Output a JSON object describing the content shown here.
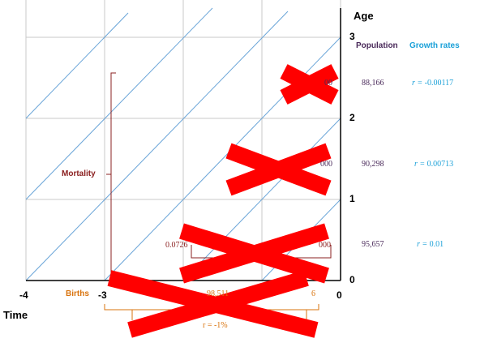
{
  "axes": {
    "y_title": "Age",
    "x_title": "Time",
    "x_ticks": [
      "-4",
      "-3",
      "0"
    ],
    "y_ticks": [
      "3",
      "2",
      "1",
      "0"
    ]
  },
  "table": {
    "population_header": "Population",
    "growth_header": "Growth rates",
    "rows": [
      {
        "population": "88,166",
        "rate_prefix": "r =",
        "rate_value": "-0.00117"
      },
      {
        "population": "90,298",
        "rate_prefix": "r =",
        "rate_value": "0.00713"
      },
      {
        "population": "95,657",
        "rate_prefix": "r =",
        "rate_value": "0.01"
      }
    ]
  },
  "labels": {
    "mortality": "Mortality",
    "births": "Births",
    "births_rate": "r = -1%",
    "births_value_partial": "98,511",
    "mortality_rate_partial": "0.0726",
    "partial_text_row1": "00",
    "partial_text_row2": "000",
    "partial_text_row3": "000",
    "partial_births_right": "6"
  },
  "colors": {
    "grid": "#c8c8c8",
    "lexis_lines": "#6aa5d8",
    "mortality": "#8b2020",
    "births": "#d9730d",
    "cross": "#ff0000",
    "population": "#4a2a5a",
    "growth": "#1aa0d8"
  }
}
